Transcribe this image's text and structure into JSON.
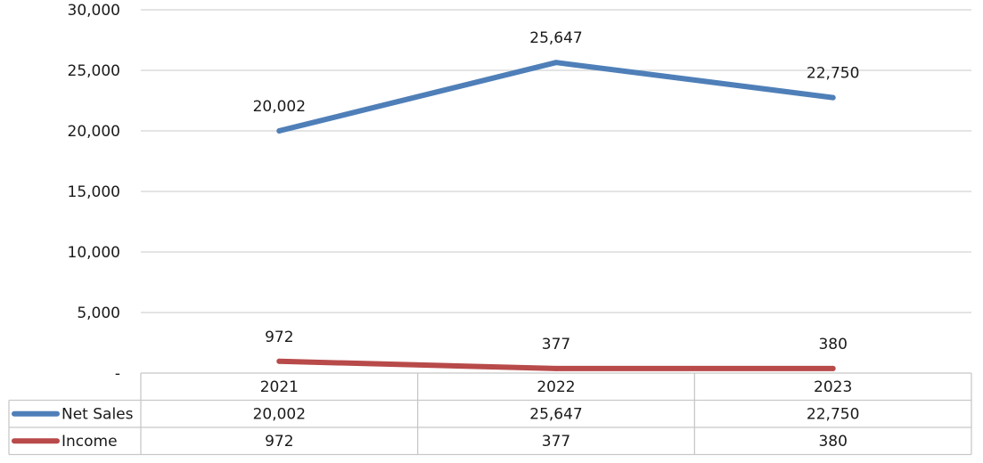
{
  "chart_data": {
    "type": "line",
    "title": "",
    "xlabel": "",
    "ylabel": "",
    "categories": [
      "2021",
      "2022",
      "2023"
    ],
    "ylim": [
      0,
      30000
    ],
    "y_ticks": [
      0,
      5000,
      10000,
      15000,
      20000,
      25000,
      30000
    ],
    "y_tick_labels": [
      "-",
      "5,000",
      "10,000",
      "15,000",
      "20,000",
      "25,000",
      "30,000"
    ],
    "grid": true,
    "legend": "data-table",
    "series": [
      {
        "name": "Net Sales",
        "color": "#4f7fb8",
        "values": [
          20002,
          25647,
          22750
        ],
        "value_labels": [
          "20,002",
          "25,647",
          "22,750"
        ]
      },
      {
        "name": "Income",
        "color": "#b84a4a",
        "values": [
          972,
          377,
          380
        ],
        "value_labels": [
          "972",
          "377",
          "380"
        ]
      }
    ]
  }
}
